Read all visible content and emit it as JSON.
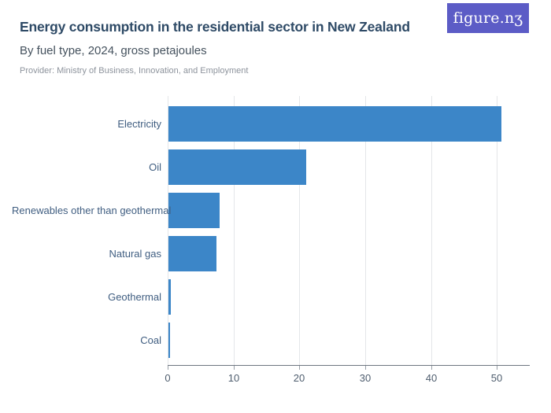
{
  "brand": {
    "logo_text": "figure.nʒ",
    "logo_bg": "#5c5cc6",
    "logo_text_color": "#ffffff"
  },
  "header": {
    "title": "Energy consumption in the residential sector in New Zealand",
    "subtitle": "By fuel type, 2024, gross petajoules",
    "provider": "Provider: Ministry of Business, Innovation, and Employment"
  },
  "colors": {
    "bar": "#3c86c8",
    "title": "#2e4a66",
    "subtitle": "#45525e",
    "provider": "#8d939c",
    "category_label": "#3f5d80",
    "tick_label": "#4e5d6e",
    "gridline": "#e4e6e9",
    "axis_line": "#6e7681",
    "logo_background": "#5c5cc6"
  },
  "chart_data": {
    "type": "bar",
    "orientation": "horizontal",
    "title": "Energy consumption in the residential sector in New Zealand",
    "subtitle": "By fuel type, 2024, gross petajoules",
    "unit": "gross petajoules",
    "categories": [
      "Electricity",
      "Oil",
      "Renewables other than geothermal",
      "Natural gas",
      "Geothermal",
      "Coal"
    ],
    "values": [
      50.6,
      20.9,
      7.8,
      7.3,
      0.3,
      0.2
    ],
    "xlim": [
      0,
      55
    ],
    "xticks": [
      0,
      10,
      20,
      30,
      40,
      50
    ],
    "grid": "vertical",
    "legend": "none",
    "xlabel": "",
    "ylabel": ""
  }
}
